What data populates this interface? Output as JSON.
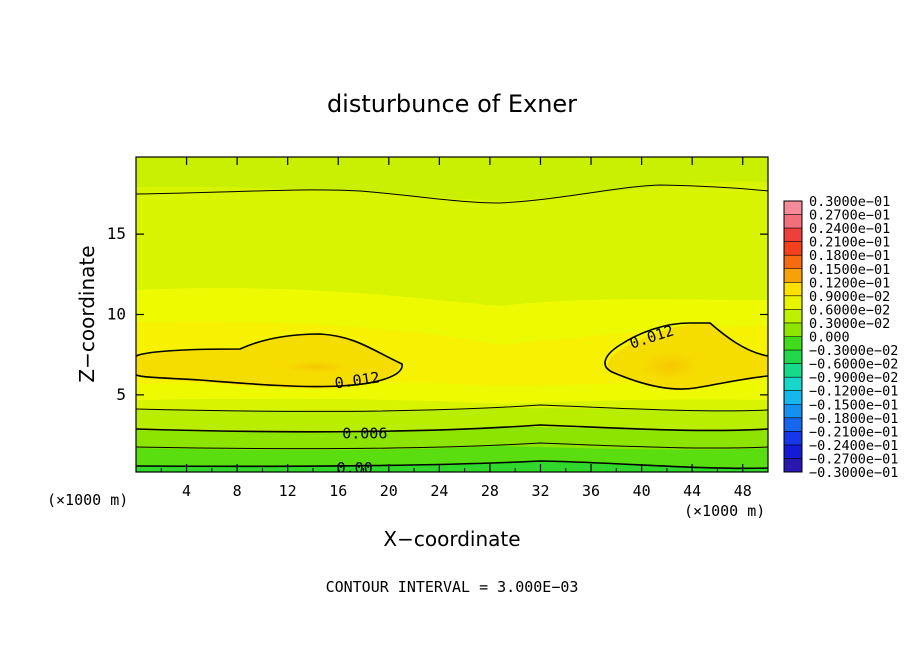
{
  "chart_data": {
    "type": "heatmap",
    "title": "disturbunce of Exner",
    "xlabel": "X−coordinate",
    "ylabel": "Z−coordinate",
    "x_unit_note": "(×1000 m)",
    "y_unit_note": "(×1000 m)",
    "footer": "CONTOUR INTERVAL = 3.000E−03",
    "xlim": [
      0,
      50
    ],
    "ylim": [
      0.2,
      19.8
    ],
    "x_ticks": [
      4,
      8,
      12,
      16,
      20,
      24,
      28,
      32,
      36,
      40,
      44,
      48
    ],
    "y_ticks": [
      5,
      10,
      15
    ],
    "contour_labels": [
      {
        "text": "0.012",
        "x": 17.5,
        "y": 5.9
      },
      {
        "text": "0.012",
        "x": 40.8,
        "y": 8.6
      },
      {
        "text": "0.006",
        "x": 18.1,
        "y": 2.6
      },
      {
        "text": "0.00",
        "x": 17.3,
        "y": 0.45
      }
    ],
    "colorbar": {
      "labels": [
        "0.3000e−01",
        "0.2700e−01",
        "0.2400e−01",
        "0.2100e−01",
        "0.1800e−01",
        "0.1500e−01",
        "0.1200e−01",
        "0.9000e−02",
        "0.6000e−02",
        "0.3000e−02",
        "0.000",
        "−0.3000e−02",
        "−0.6000e−02",
        "−0.9000e−02",
        "−0.1200e−01",
        "−0.1500e−01",
        "−0.1800e−01",
        "−0.2100e−01",
        "−0.2400e−01",
        "−0.2700e−01",
        "−0.3000e−01"
      ],
      "colors": [
        "#f48a9a",
        "#f06f7a",
        "#ee3f3a",
        "#f4401c",
        "#f66a10",
        "#f7a10a",
        "#fee100",
        "#e9f500",
        "#bff000",
        "#8fe400",
        "#40dc1c",
        "#22d84a",
        "#16d98a",
        "#17d6cc",
        "#16b8ec",
        "#1490f0",
        "#1766ef",
        "#1538e8",
        "#141ad6",
        "#2a18ae",
        "#4c188e"
      ]
    }
  }
}
